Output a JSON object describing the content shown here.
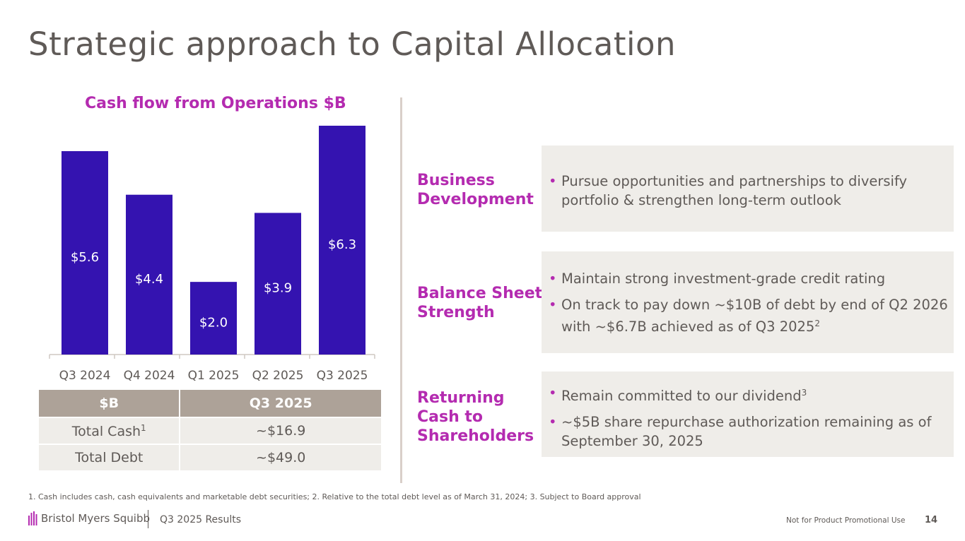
{
  "title": "Strategic approach to Capital Allocation",
  "chart_data": {
    "type": "bar",
    "title": "Cash flow from Operations $B",
    "categories": [
      "Q3 2024",
      "Q4 2024",
      "Q1 2025",
      "Q2 2025",
      "Q3 2025"
    ],
    "values": [
      5.6,
      4.4,
      2.0,
      3.9,
      6.3
    ],
    "labels": [
      "$5.6",
      "$4.4",
      "$2.0",
      "$3.9",
      "$6.3"
    ],
    "ylim": [
      0,
      6.3
    ],
    "bar_color": "#3413b0",
    "label_color": "#ffffff"
  },
  "table": {
    "headers": [
      "$B",
      "Q3 2025"
    ],
    "rows": [
      {
        "label": "Total Cash",
        "sup": "1",
        "value": "~$16.9"
      },
      {
        "label": "Total Debt",
        "sup": "",
        "value": "~$49.0"
      }
    ]
  },
  "sections": [
    {
      "category": [
        "Business",
        "Development"
      ],
      "bullets": [
        {
          "text": "Pursue opportunities and partnerships to diversify portfolio & strengthen long-term outlook",
          "sup": ""
        }
      ]
    },
    {
      "category": [
        "Balance Sheet",
        "Strength"
      ],
      "bullets": [
        {
          "text": "Maintain strong investment-grade credit rating",
          "sup": ""
        },
        {
          "text": "On track to pay down ~$10B of debt by end of Q2 2026 with ~$6.7B achieved as of Q3 2025",
          "sup": "2"
        }
      ]
    },
    {
      "category": [
        "Returning",
        "Cash to",
        "Shareholders"
      ],
      "bullets": [
        {
          "text": "Remain committed to our dividend",
          "sup": "3"
        },
        {
          "text": "~$5B share repurchase authorization remaining as of September 30, 2025",
          "sup": ""
        }
      ]
    }
  ],
  "footnote": "1. Cash includes cash, cash equivalents and marketable debt securities; 2. Relative to the total debt level as of March 31, 2024; 3. Subject to Board approval",
  "footer": {
    "company": "Bristol Myers Squibb",
    "report": "Q3 2025 Results",
    "disclaimer": "Not for Product Promotional Use",
    "page": "14"
  },
  "colors": {
    "accent": "#b42bb0",
    "bar": "#3413b0",
    "table_header": "#ada298",
    "panel": "#efede9"
  }
}
